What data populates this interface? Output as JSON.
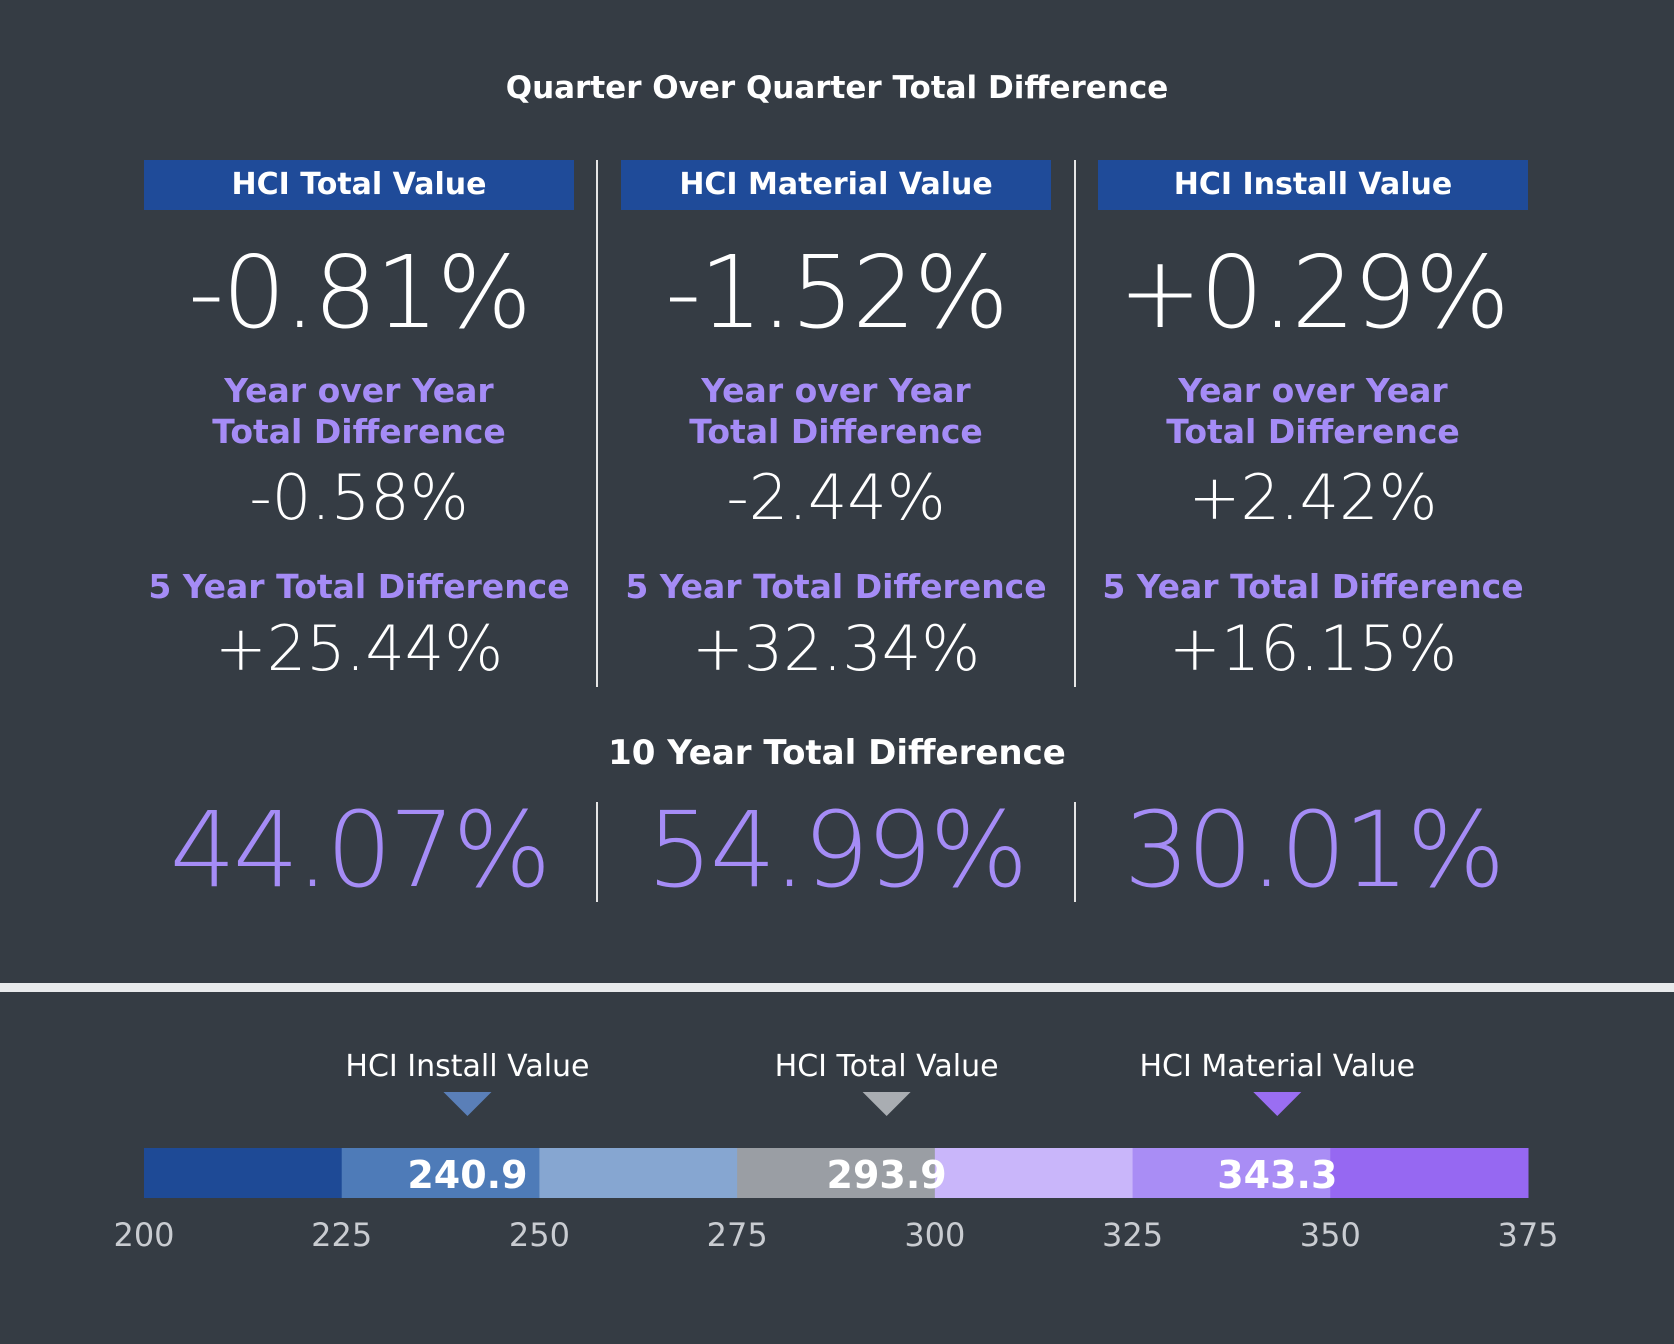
{
  "title": "Quarter Over Quarter Total Difference",
  "columns": [
    {
      "header": "HCI Total Value",
      "qoq": "-0.81%",
      "yoy_label_1": "Year over Year",
      "yoy_label_2": "Total Difference",
      "yoy": "-0.58%",
      "five_year_label": "5 Year Total Difference",
      "five_year": "+25.44%"
    },
    {
      "header": "HCI Material Value",
      "qoq": "-1.52%",
      "yoy_label_1": "Year over Year",
      "yoy_label_2": "Total Difference",
      "yoy": "-2.44%",
      "five_year_label": "5 Year Total Difference",
      "five_year": "+32.34%"
    },
    {
      "header": "HCI Install Value",
      "qoq": "+0.29%",
      "yoy_label_1": "Year over Year",
      "yoy_label_2": "Total Difference",
      "yoy": "+2.42%",
      "five_year_label": "5 Year Total Difference",
      "five_year": "+16.15%"
    }
  ],
  "ten_year": {
    "title": "10 Year Total Difference",
    "values": [
      "44.07%",
      "54.99%",
      "30.01%"
    ]
  },
  "colors": {
    "background": "#353c44",
    "header_blue": "#1f4b99",
    "accent_purple": "#a58cf6"
  },
  "chart_data": {
    "type": "bar",
    "orientation": "horizontal",
    "xlim": [
      200,
      375
    ],
    "ticks": [
      200,
      225,
      250,
      275,
      300,
      325,
      350,
      375
    ],
    "segments": [
      {
        "from": 200,
        "to": 225,
        "color": "#1e4a96"
      },
      {
        "from": 225,
        "to": 250,
        "color": "#4e7bb8"
      },
      {
        "from": 250,
        "to": 275,
        "color": "#86a6d1"
      },
      {
        "from": 275,
        "to": 300,
        "color": "#9a9ea4"
      },
      {
        "from": 300,
        "to": 325,
        "color": "#c9b6fa"
      },
      {
        "from": 325,
        "to": 350,
        "color": "#a98df5"
      },
      {
        "from": 350,
        "to": 375,
        "color": "#9668f2"
      }
    ],
    "markers": [
      {
        "name": "HCI Install Value",
        "value": 240.9,
        "label": "240.9",
        "color": "#5a7fb8"
      },
      {
        "name": "HCI Total Value",
        "value": 293.9,
        "label": "293.9",
        "color": "#a9adb2"
      },
      {
        "name": "HCI Material Value",
        "value": 343.3,
        "label": "343.3",
        "color": "#9a6ef2"
      }
    ]
  }
}
